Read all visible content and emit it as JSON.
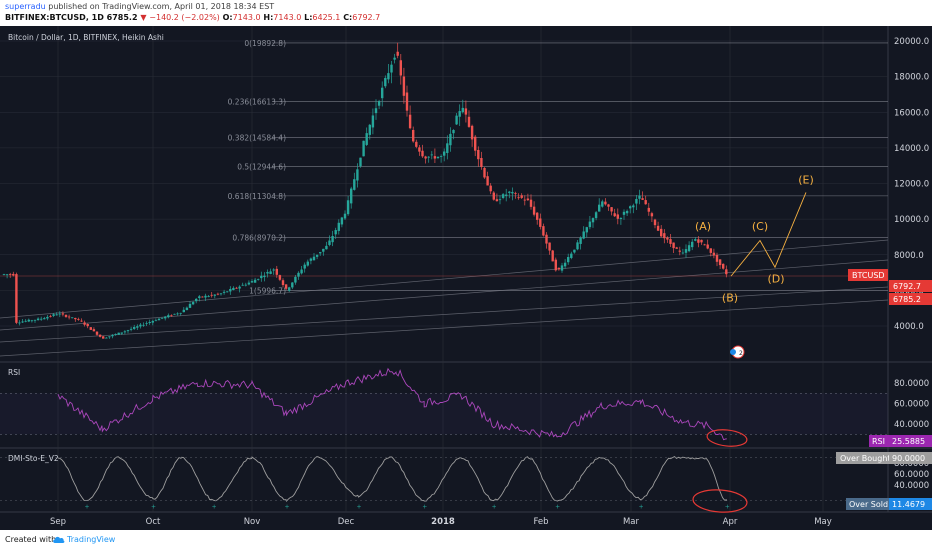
{
  "header": {
    "author": "superradu",
    "published_text": "published on TradingView.com, April 01, 2018 18:34 EST",
    "symbol_line": "BITFINEX:BTCUSD, 1D",
    "last": "6785.2",
    "change_arrow": "▼",
    "change": "−140.2 (−2.02%)",
    "o_label": "O:",
    "o": "7143.0",
    "h_label": "H:",
    "h": "7143.0",
    "l_label": "L:",
    "l": "6425.1",
    "c_label": "C:",
    "c": "6792.7"
  },
  "footer": {
    "created_with": "Created with",
    "brand": "TradingView"
  },
  "colors": {
    "background": "#131722",
    "up": "#26a69a",
    "down": "#ef5350",
    "grid": "#2a2e39",
    "rsi": "#ab47bc",
    "stoch": "#9e9e9e",
    "wave": "#f5b041",
    "circle": "#e53935",
    "badge_price": "#e53935",
    "badge_rsi": "#9c27b0",
    "badge_ob": "#9e9e9e",
    "badge_os": "#4a6a8a"
  },
  "main_chart": {
    "title": "Bitcoin / Dollar, 1D, BITFINEX, Heikin Ashi",
    "price_labels": [
      "20000.0",
      "18000.0",
      "16000.0",
      "14000.0",
      "12000.0",
      "10000.0",
      "8000.0",
      "6000.0",
      "4000.0"
    ],
    "price_values": [
      20000,
      18000,
      16000,
      14000,
      12000,
      10000,
      8000,
      6000,
      4000
    ],
    "symbol_badge": "BTCUSD",
    "price_badge_1": "6792.7",
    "price_badge_2": "6785.2",
    "fib_levels": [
      {
        "label": "0(19892.8)",
        "value": 19892.8
      },
      {
        "label": "0.236(16613.3)",
        "value": 16613.3
      },
      {
        "label": "0.382(14584.4)",
        "value": 14584.4
      },
      {
        "label": "0.5(12944.6)",
        "value": 12944.6
      },
      {
        "label": "0.618(11304.8)",
        "value": 11304.8
      },
      {
        "label": "0.786(8970.2)",
        "value": 8970.2
      },
      {
        "label": "1(5996.7)",
        "value": 5996.7
      }
    ],
    "waves": [
      {
        "label": "(A)",
        "value": 9400
      },
      {
        "label": "(B)",
        "value": 5950
      },
      {
        "label": "(C)",
        "value": 9400
      },
      {
        "label": "(D)",
        "value": 7000
      },
      {
        "label": "(E)",
        "value": 12000
      }
    ],
    "compare_marker": "2 9"
  },
  "chart_data": {
    "type": "line",
    "title": "Bitcoin / Dollar, 1D, BITFINEX, Heikin Ashi",
    "xlabel": "",
    "ylabel": "",
    "x_ticks": [
      "Sep",
      "Oct",
      "Nov",
      "Dec",
      "2018",
      "Feb",
      "Mar",
      "Apr",
      "May"
    ],
    "ylim": [
      2500,
      21500
    ],
    "series": [
      {
        "name": "BTCUSD",
        "points": [
          [
            "Aug 15",
            4200
          ],
          [
            "Aug 25",
            4400
          ],
          [
            "Sep 1",
            4700
          ],
          [
            "Sep 8",
            4300
          ],
          [
            "Sep 15",
            3300
          ],
          [
            "Sep 22",
            3700
          ],
          [
            "Oct 1",
            4300
          ],
          [
            "Oct 10",
            4800
          ],
          [
            "Oct 15",
            5600
          ],
          [
            "Oct 22",
            5800
          ],
          [
            "Nov 1",
            6500
          ],
          [
            "Nov 8",
            7200
          ],
          [
            "Nov 12",
            6000
          ],
          [
            "Nov 18",
            7500
          ],
          [
            "Nov 25",
            8500
          ],
          [
            "Dec 1",
            10500
          ],
          [
            "Dec 7",
            14500
          ],
          [
            "Dec 12",
            17000
          ],
          [
            "Dec 17",
            19500
          ],
          [
            "Dec 22",
            14500
          ],
          [
            "Dec 26",
            13500
          ],
          [
            "Jan 1",
            13500
          ],
          [
            "Jan 7",
            16500
          ],
          [
            "Jan 12",
            13500
          ],
          [
            "Jan 17",
            11000
          ],
          [
            "Jan 22",
            11500
          ],
          [
            "Jan 28",
            11000
          ],
          [
            "Feb 1",
            9500
          ],
          [
            "Feb 6",
            7000
          ],
          [
            "Feb 12",
            8500
          ],
          [
            "Feb 20",
            11000
          ],
          [
            "Feb 25",
            10000
          ],
          [
            "Mar 4",
            11300
          ],
          [
            "Mar 10",
            9200
          ],
          [
            "Mar 17",
            8000
          ],
          [
            "Mar 21",
            8900
          ],
          [
            "Mar 25",
            8400
          ],
          [
            "Mar 31",
            6900
          ]
        ]
      },
      {
        "name": "RSI",
        "points": [
          [
            "Sep 1",
            68
          ],
          [
            "Sep 15",
            35
          ],
          [
            "Oct 1",
            65
          ],
          [
            "Oct 15",
            80
          ],
          [
            "Nov 1",
            78
          ],
          [
            "Nov 12",
            50
          ],
          [
            "Dec 1",
            80
          ],
          [
            "Dec 17",
            93
          ],
          [
            "Dec 26",
            60
          ],
          [
            "Jan 7",
            68
          ],
          [
            "Jan 17",
            40
          ],
          [
            "Feb 6",
            28
          ],
          [
            "Feb 20",
            58
          ],
          [
            "Mar 4",
            62
          ],
          [
            "Mar 17",
            42
          ],
          [
            "Mar 25",
            38
          ],
          [
            "Mar 31",
            25.59
          ]
        ]
      },
      {
        "name": "DMI-Sto-E_V2",
        "points": [
          [
            "Sep 1",
            90
          ],
          [
            "Sep 10",
            12
          ],
          [
            "Sep 20",
            90
          ],
          [
            "Oct 1",
            15
          ],
          [
            "Oct 10",
            90
          ],
          [
            "Oct 20",
            12
          ],
          [
            "Nov 1",
            90
          ],
          [
            "Nov 12",
            12
          ],
          [
            "Nov 22",
            90
          ],
          [
            "Dec 5",
            20
          ],
          [
            "Dec 15",
            90
          ],
          [
            "Dec 26",
            12
          ],
          [
            "Jan 7",
            90
          ],
          [
            "Jan 17",
            12
          ],
          [
            "Jan 28",
            90
          ],
          [
            "Feb 6",
            12
          ],
          [
            "Feb 20",
            90
          ],
          [
            "Mar 4",
            15
          ],
          [
            "Mar 14",
            90
          ],
          [
            "Mar 24",
            88
          ],
          [
            "Mar 31",
            11.47
          ]
        ]
      }
    ]
  },
  "rsi_panel": {
    "title": "RSI",
    "levels": [
      "80.0000",
      "60.0000",
      "40.0000"
    ],
    "level_values": [
      80,
      60,
      40
    ],
    "badge_label": "RSI",
    "badge_value": "25.5885"
  },
  "stoch_panel": {
    "title": "DMI-Sto-E_V2",
    "levels": [
      "80.0000",
      "60.0000",
      "40.0000"
    ],
    "level_values": [
      80,
      60,
      40
    ],
    "ob_label": "Over Bought",
    "ob_value": "90.0000",
    "os_label": "Over Sold",
    "os_value": "11.4679"
  },
  "time_axis": {
    "labels": [
      "Sep",
      "Oct",
      "Nov",
      "Dec",
      "2018",
      "Feb",
      "Mar",
      "Apr",
      "May"
    ]
  }
}
